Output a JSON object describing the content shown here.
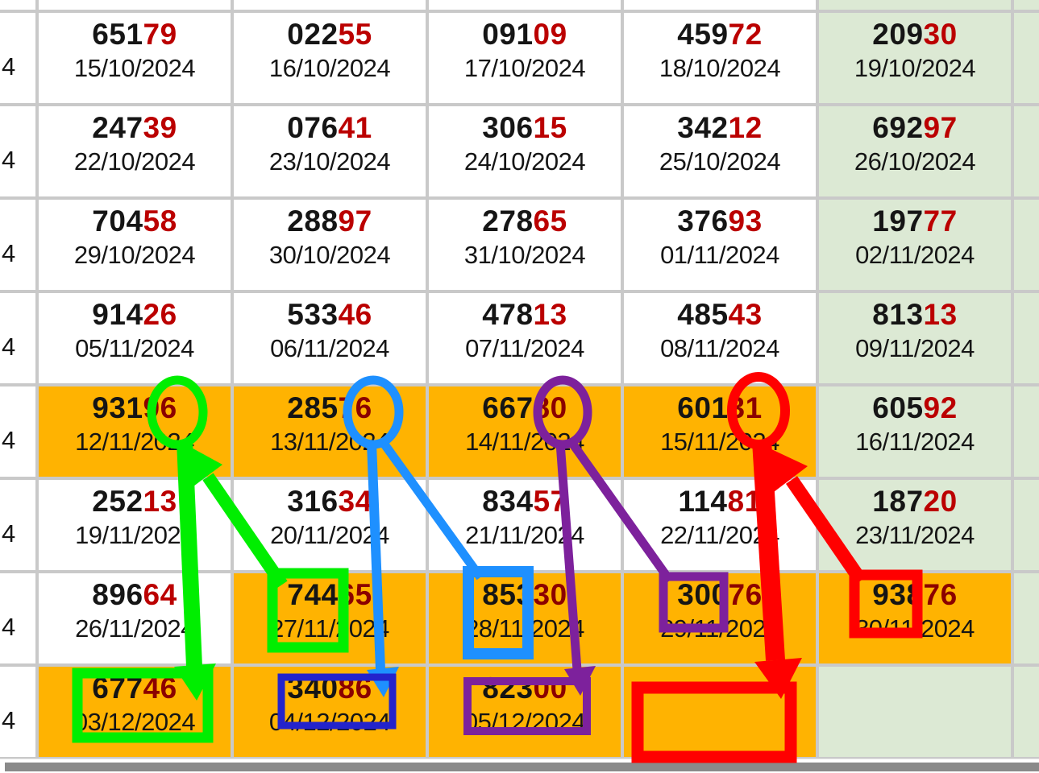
{
  "colors": {
    "cell_orange": "#FFB301",
    "cell_green": "#DCE9D4",
    "grid_line": "#C9C9C9",
    "ink": "#151515",
    "red_on_light": "#BB0000",
    "red_on_orange": "#8B0000",
    "scrollbar_gray": "#8A8A8A"
  },
  "annotations": {
    "green_hex": "#00EE00",
    "blue_hex": "#1E90FF",
    "dark_blue_hex": "#2323CC",
    "purple_hex": "#7D219C",
    "red_hex": "#FF0000"
  },
  "table": {
    "top_row_bgs": [
      "white",
      "white",
      "white",
      "white",
      "white",
      "green",
      "green"
    ],
    "rows": [
      {
        "sliver": "4",
        "col6_bg": "green",
        "cells": [
          {
            "number": "65179",
            "black": "651",
            "red": "79",
            "date": "15/10/2024",
            "bg": "white"
          },
          {
            "number": "02255",
            "black": "022",
            "red": "55",
            "date": "16/10/2024",
            "bg": "white"
          },
          {
            "number": "09109",
            "black": "091",
            "red": "09",
            "date": "17/10/2024",
            "bg": "white"
          },
          {
            "number": "45972",
            "black": "459",
            "red": "72",
            "date": "18/10/2024",
            "bg": "white"
          },
          {
            "number": "20930",
            "black": "209",
            "red": "30",
            "date": "19/10/2024",
            "bg": "green"
          }
        ]
      },
      {
        "sliver": "4",
        "col6_bg": "green",
        "cells": [
          {
            "number": "24739",
            "black": "247",
            "red": "39",
            "date": "22/10/2024",
            "bg": "white"
          },
          {
            "number": "07641",
            "black": "076",
            "red": "41",
            "date": "23/10/2024",
            "bg": "white"
          },
          {
            "number": "30615",
            "black": "306",
            "red": "15",
            "date": "24/10/2024",
            "bg": "white"
          },
          {
            "number": "34212",
            "black": "342",
            "red": "12",
            "date": "25/10/2024",
            "bg": "white"
          },
          {
            "number": "69297",
            "black": "692",
            "red": "97",
            "date": "26/10/2024",
            "bg": "green"
          }
        ]
      },
      {
        "sliver": "4",
        "col6_bg": "green",
        "cells": [
          {
            "number": "70458",
            "black": "704",
            "red": "58",
            "date": "29/10/2024",
            "bg": "white"
          },
          {
            "number": "28897",
            "black": "288",
            "red": "97",
            "date": "30/10/2024",
            "bg": "white"
          },
          {
            "number": "27865",
            "black": "278",
            "red": "65",
            "date": "31/10/2024",
            "bg": "white"
          },
          {
            "number": "37693",
            "black": "376",
            "red": "93",
            "date": "01/11/2024",
            "bg": "white"
          },
          {
            "number": "19777",
            "black": "197",
            "red": "77",
            "date": "02/11/2024",
            "bg": "green"
          }
        ]
      },
      {
        "sliver": "4",
        "col6_bg": "green",
        "cells": [
          {
            "number": "91426",
            "black": "914",
            "red": "26",
            "date": "05/11/2024",
            "bg": "white"
          },
          {
            "number": "53346",
            "black": "533",
            "red": "46",
            "date": "06/11/2024",
            "bg": "white"
          },
          {
            "number": "47813",
            "black": "478",
            "red": "13",
            "date": "07/11/2024",
            "bg": "white"
          },
          {
            "number": "48543",
            "black": "485",
            "red": "43",
            "date": "08/11/2024",
            "bg": "white"
          },
          {
            "number": "81313",
            "black": "813",
            "red": "13",
            "date": "09/11/2024",
            "bg": "green"
          }
        ]
      },
      {
        "sliver": "4",
        "col6_bg": "green",
        "cells": [
          {
            "number": "93196",
            "black": "931",
            "red": "96",
            "date": "12/11/2024",
            "bg": "orange"
          },
          {
            "number": "28576",
            "black": "285",
            "red": "76",
            "date": "13/11/2024",
            "bg": "orange"
          },
          {
            "number": "66780",
            "black": "667",
            "red": "80",
            "date": "14/11/2024",
            "bg": "orange"
          },
          {
            "number": "60131",
            "black": "601",
            "red": "31",
            "date": "15/11/2024",
            "bg": "orange"
          },
          {
            "number": "60592",
            "black": "605",
            "red": "92",
            "date": "16/11/2024",
            "bg": "green"
          }
        ]
      },
      {
        "sliver": "4",
        "col6_bg": "green",
        "cells": [
          {
            "number": "25213",
            "black": "252",
            "red": "13",
            "date": "19/11/2024",
            "bg": "white"
          },
          {
            "number": "31634",
            "black": "316",
            "red": "34",
            "date": "20/11/2024",
            "bg": "white"
          },
          {
            "number": "83457",
            "black": "834",
            "red": "57",
            "date": "21/11/2024",
            "bg": "white"
          },
          {
            "number": "11481",
            "black": "114",
            "red": "81",
            "date": "22/11/2024",
            "bg": "white"
          },
          {
            "number": "18720",
            "black": "187",
            "red": "20",
            "date": "23/11/2024",
            "bg": "green"
          }
        ]
      },
      {
        "sliver": "4",
        "col6_bg": "green",
        "cells": [
          {
            "number": "89664",
            "black": "896",
            "red": "64",
            "date": "26/11/2024",
            "bg": "white"
          },
          {
            "number": "74465",
            "black": "744",
            "red": "65",
            "date": "27/11/2024",
            "bg": "orange"
          },
          {
            "number": "85330",
            "black": "853",
            "red": "30",
            "date": "28/11/2024",
            "bg": "orange"
          },
          {
            "number": "30076",
            "black": "300",
            "red": "76",
            "date": "29/11/2024",
            "bg": "orange"
          },
          {
            "number": "93876",
            "black": "938",
            "red": "76",
            "date": "30/11/2024",
            "bg": "orange"
          }
        ]
      },
      {
        "sliver": "4",
        "col6_bg": "green",
        "cells": [
          {
            "number": "67746",
            "black": "677",
            "red": "46",
            "date": "03/12/2024",
            "bg": "orange"
          },
          {
            "number": "34086",
            "black": "340",
            "red": "86",
            "date": "04/12/2024",
            "bg": "orange"
          },
          {
            "number": "82300",
            "black": "823",
            "red": "00",
            "date": "05/12/2024",
            "bg": "orange"
          },
          {
            "number": "",
            "black": "",
            "red": "",
            "date": "",
            "bg": "orange"
          },
          {
            "number": "",
            "black": "",
            "red": "",
            "date": "",
            "bg": "green"
          }
        ]
      }
    ]
  }
}
